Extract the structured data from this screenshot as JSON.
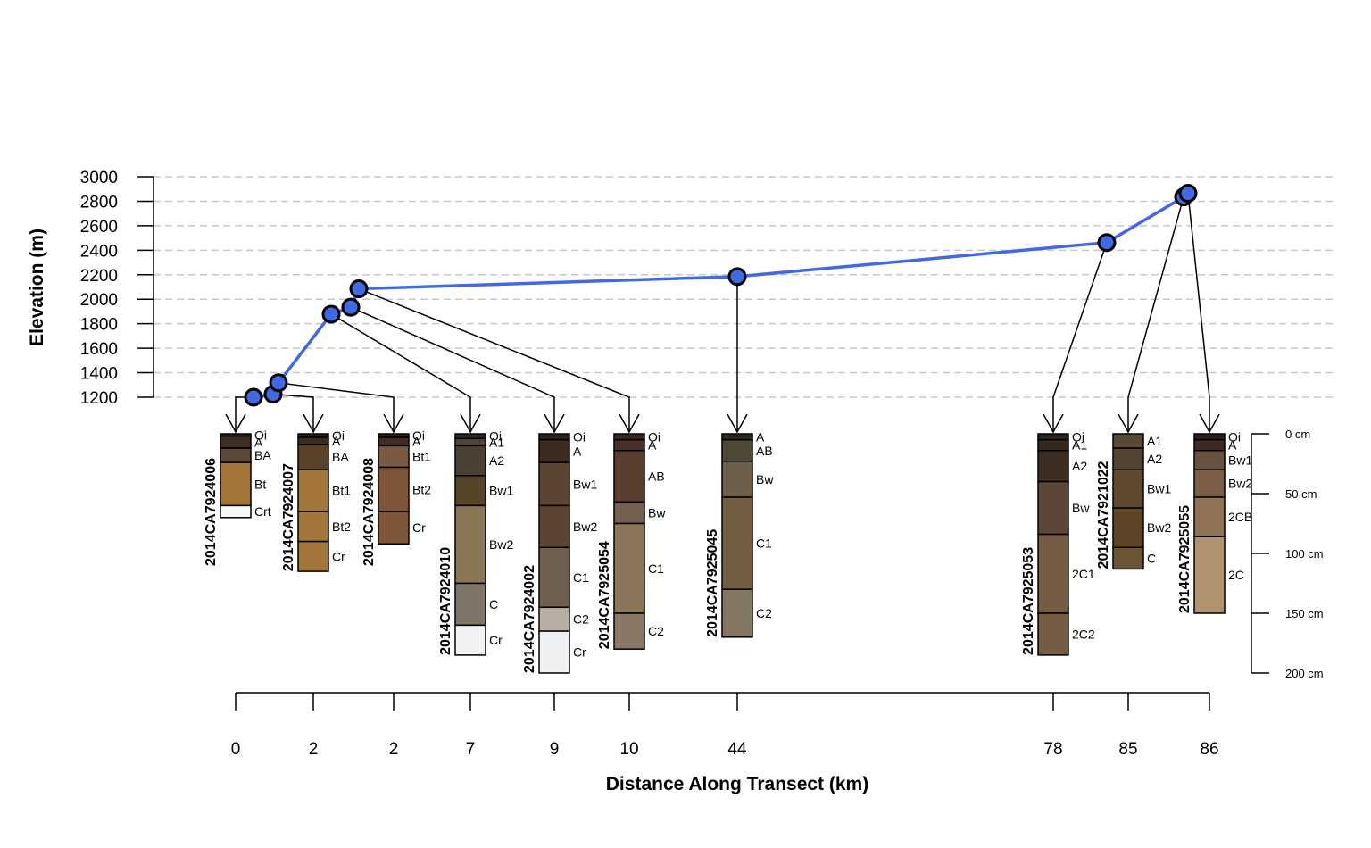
{
  "chart_data": {
    "type": "line",
    "xlabel": "Distance Along Transect (km)",
    "ylabel": "Elevation (m)",
    "ylim": [
      1200,
      3000
    ],
    "yticks": [
      1200,
      1400,
      1600,
      1800,
      2000,
      2200,
      2400,
      2600,
      2800,
      3000
    ],
    "grid": true,
    "line_color": "#4169E1",
    "points": [
      {
        "elevation": 1200,
        "distance_km": 0
      },
      {
        "elevation": 1225,
        "distance_km": 2
      },
      {
        "elevation": 1318,
        "distance_km": 2
      },
      {
        "elevation": 1878,
        "distance_km": 7
      },
      {
        "elevation": 1935,
        "distance_km": 9
      },
      {
        "elevation": 2085,
        "distance_km": 10
      },
      {
        "elevation": 2185,
        "distance_km": 44
      },
      {
        "elevation": 2463,
        "distance_km": 78
      },
      {
        "elevation": 2835,
        "distance_km": 85
      },
      {
        "elevation": 2865,
        "distance_km": 86
      }
    ],
    "depth_axis": {
      "ticks": [
        0,
        50,
        100,
        150,
        200
      ],
      "unit": "cm"
    },
    "profiles": [
      {
        "id": "2014CA7924006",
        "distance_label": "0",
        "point": 0,
        "horizons": [
          {
            "name": "Oi",
            "top": 0,
            "bottom": 2,
            "color": "#2b231b"
          },
          {
            "name": "A",
            "top": 2,
            "bottom": 12,
            "color": "#3a2e22"
          },
          {
            "name": "BA",
            "top": 12,
            "bottom": 24,
            "color": "#5a4a37"
          },
          {
            "name": "Bt",
            "top": 24,
            "bottom": 60,
            "color": "#a3773a"
          },
          {
            "name": "Crt",
            "top": 60,
            "bottom": 70,
            "color": "#f7f7f7"
          }
        ]
      },
      {
        "id": "2014CA7924007",
        "distance_label": "2",
        "point": 1,
        "horizons": [
          {
            "name": "Oi",
            "top": 0,
            "bottom": 3,
            "color": "#2a2118"
          },
          {
            "name": "A",
            "top": 3,
            "bottom": 9,
            "color": "#3a2c1e"
          },
          {
            "name": "BA",
            "top": 9,
            "bottom": 30,
            "color": "#5a4128"
          },
          {
            "name": "Bt1",
            "top": 30,
            "bottom": 65,
            "color": "#a3773a"
          },
          {
            "name": "Bt2",
            "top": 65,
            "bottom": 90,
            "color": "#a3773a"
          },
          {
            "name": "Cr",
            "top": 90,
            "bottom": 115,
            "color": "#a3773a"
          }
        ]
      },
      {
        "id": "2014CA7924008",
        "distance_label": "2",
        "point": 2,
        "horizons": [
          {
            "name": "Oi",
            "top": 0,
            "bottom": 3,
            "color": "#2e241f"
          },
          {
            "name": "A",
            "top": 3,
            "bottom": 10,
            "color": "#3e2d25"
          },
          {
            "name": "Bt1",
            "top": 10,
            "bottom": 28,
            "color": "#7a5a43"
          },
          {
            "name": "Bt2",
            "top": 28,
            "bottom": 65,
            "color": "#7f5639"
          },
          {
            "name": "Cr",
            "top": 65,
            "bottom": 92,
            "color": "#7f5639"
          }
        ]
      },
      {
        "id": "2014CA7924010",
        "distance_label": "7",
        "point": 3,
        "horizons": [
          {
            "name": "Oi",
            "top": 0,
            "bottom": 4,
            "color": "#2d2723"
          },
          {
            "name": "A1",
            "top": 4,
            "bottom": 10,
            "color": "#524538"
          },
          {
            "name": "A2",
            "top": 10,
            "bottom": 35,
            "color": "#4b4133"
          },
          {
            "name": "Bw1",
            "top": 35,
            "bottom": 60,
            "color": "#564529"
          },
          {
            "name": "Bw2",
            "top": 60,
            "bottom": 125,
            "color": "#8a7755"
          },
          {
            "name": "C",
            "top": 125,
            "bottom": 160,
            "color": "#817468"
          },
          {
            "name": "Cr",
            "top": 160,
            "bottom": 185,
            "color": "#f2f2f2"
          }
        ]
      },
      {
        "id": "2014CA7924002",
        "distance_label": "9",
        "point": 4,
        "horizons": [
          {
            "name": "Oi",
            "top": 0,
            "bottom": 5,
            "color": "#2c221c"
          },
          {
            "name": "A",
            "top": 5,
            "bottom": 24,
            "color": "#3c2b21"
          },
          {
            "name": "Bw1",
            "top": 24,
            "bottom": 60,
            "color": "#5b4432"
          },
          {
            "name": "Bw2",
            "top": 60,
            "bottom": 95,
            "color": "#5b4432"
          },
          {
            "name": "C1",
            "top": 95,
            "bottom": 145,
            "color": "#70604f"
          },
          {
            "name": "C2",
            "top": 145,
            "bottom": 165,
            "color": "#b8aea3"
          },
          {
            "name": "Cr",
            "top": 165,
            "bottom": 200,
            "color": "#f0f0f0"
          }
        ]
      },
      {
        "id": "2014CA7925054",
        "distance_label": "10",
        "point": 5,
        "horizons": [
          {
            "name": "Oi",
            "top": 0,
            "bottom": 5,
            "color": "#3a2624"
          },
          {
            "name": "A",
            "top": 5,
            "bottom": 14,
            "color": "#4a2f2d"
          },
          {
            "name": "AB",
            "top": 14,
            "bottom": 57,
            "color": "#5a3f31"
          },
          {
            "name": "Bw",
            "top": 57,
            "bottom": 75,
            "color": "#75604f"
          },
          {
            "name": "C1",
            "top": 75,
            "bottom": 150,
            "color": "#8b7659"
          },
          {
            "name": "C2",
            "top": 150,
            "bottom": 180,
            "color": "#8a7765"
          }
        ]
      },
      {
        "id": "2014CA7925045",
        "distance_label": "44",
        "point": 6,
        "horizons": [
          {
            "name": "A",
            "top": 0,
            "bottom": 5,
            "color": "#2b2a1c"
          },
          {
            "name": "AB",
            "top": 5,
            "bottom": 23,
            "color": "#4c4a36"
          },
          {
            "name": "Bw",
            "top": 23,
            "bottom": 53,
            "color": "#6d5f4b"
          },
          {
            "name": "C1",
            "top": 53,
            "bottom": 130,
            "color": "#745e42"
          },
          {
            "name": "C2",
            "top": 130,
            "bottom": 170,
            "color": "#857863"
          }
        ]
      },
      {
        "id": "2014CA7925053",
        "distance_label": "78",
        "point": 7,
        "horizons": [
          {
            "name": "Oi",
            "top": 0,
            "bottom": 5,
            "color": "#2b221b"
          },
          {
            "name": "A1",
            "top": 5,
            "bottom": 14,
            "color": "#34281f"
          },
          {
            "name": "A2",
            "top": 14,
            "bottom": 40,
            "color": "#3e2e22"
          },
          {
            "name": "Bw",
            "top": 40,
            "bottom": 84,
            "color": "#5b4638"
          },
          {
            "name": "2C1",
            "top": 84,
            "bottom": 150,
            "color": "#745d44"
          },
          {
            "name": "2C2",
            "top": 150,
            "bottom": 185,
            "color": "#745d44"
          }
        ]
      },
      {
        "id": "2014CA7921022",
        "distance_label": "85",
        "point": 8,
        "horizons": [
          {
            "name": "A1",
            "top": 0,
            "bottom": 12,
            "color": "#57483a"
          },
          {
            "name": "A2",
            "top": 12,
            "bottom": 30,
            "color": "#524332"
          },
          {
            "name": "Bw1",
            "top": 30,
            "bottom": 62,
            "color": "#5d4a30"
          },
          {
            "name": "Bw2",
            "top": 62,
            "bottom": 95,
            "color": "#5e4525"
          },
          {
            "name": "C",
            "top": 95,
            "bottom": 113,
            "color": "#6b5736"
          }
        ]
      },
      {
        "id": "2014CA7925055",
        "distance_label": "86",
        "point": 9,
        "horizons": [
          {
            "name": "Oi",
            "top": 0,
            "bottom": 5,
            "color": "#2a1e1b"
          },
          {
            "name": "A",
            "top": 5,
            "bottom": 14,
            "color": "#3e2a22"
          },
          {
            "name": "Bw1",
            "top": 14,
            "bottom": 30,
            "color": "#6b5140"
          },
          {
            "name": "Bw2",
            "top": 30,
            "bottom": 53,
            "color": "#7b5e48"
          },
          {
            "name": "2CB",
            "top": 53,
            "bottom": 86,
            "color": "#8f7354"
          },
          {
            "name": "2C",
            "top": 86,
            "bottom": 150,
            "color": "#b0936f"
          }
        ]
      }
    ]
  }
}
